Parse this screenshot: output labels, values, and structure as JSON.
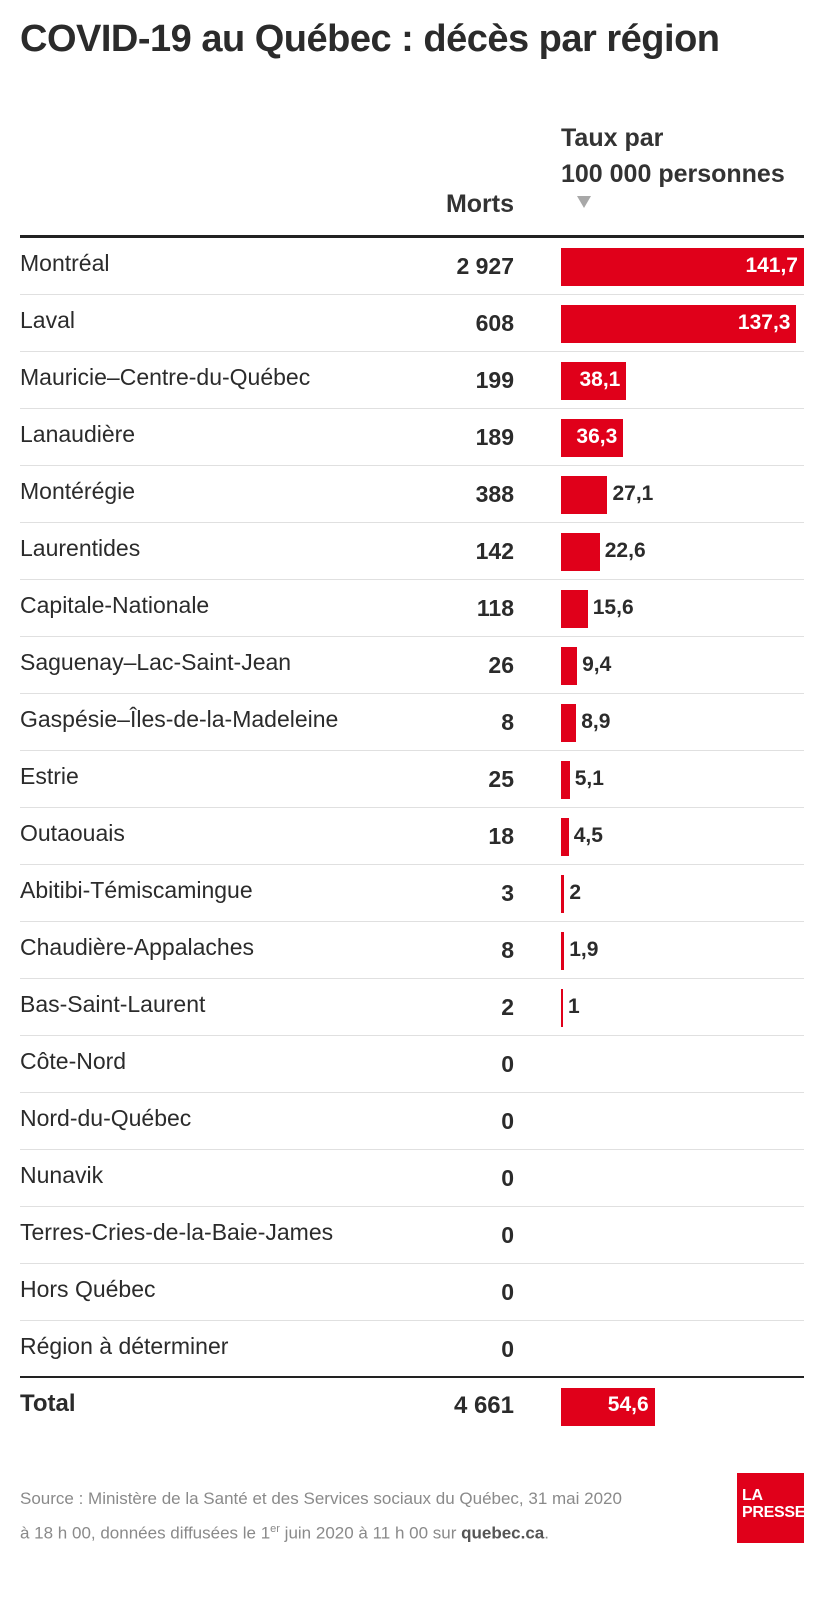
{
  "title": "COVID-19 au Québec : décès par région",
  "headers": {
    "deaths": "Morts",
    "rate_line1": "Taux par",
    "rate_line2": "100 000 personnes"
  },
  "colors": {
    "bar": "#e0001a",
    "text": "#2b2b2b",
    "rule": "#222222"
  },
  "chart_data": {
    "type": "bar",
    "orientation": "horizontal",
    "title": "COVID-19 au Québec : décès par région",
    "categories": [
      "Montréal",
      "Laval",
      "Mauricie–Centre-du-Québec",
      "Lanaudière",
      "Montérégie",
      "Laurentides",
      "Capitale-Nationale",
      "Saguenay–Lac-Saint-Jean",
      "Gaspésie–Îles-de-la-Madeleine",
      "Estrie",
      "Outaouais",
      "Abitibi-Témiscamingue",
      "Chaudière-Appalaches",
      "Bas-Saint-Laurent",
      "Côte-Nord",
      "Nord-du-Québec",
      "Nunavik",
      "Terres-Cries-de-la-Baie-James",
      "Hors Québec",
      "Région à déterminer"
    ],
    "deaths": [
      "2 927",
      "608",
      "199",
      "189",
      "388",
      "142",
      "118",
      "26",
      "8",
      "25",
      "18",
      "3",
      "8",
      "2",
      "0",
      "0",
      "0",
      "0",
      "0",
      "0"
    ],
    "rates": [
      141.7,
      137.3,
      38.1,
      36.3,
      27.1,
      22.6,
      15.6,
      9.4,
      8.9,
      5.1,
      4.5,
      2,
      1.9,
      1,
      null,
      null,
      null,
      null,
      null,
      null
    ],
    "rate_labels": [
      "141,7",
      "137,3",
      "38,1",
      "36,3",
      "27,1",
      "22,6",
      "15,6",
      "9,4",
      "8,9",
      "5,1",
      "4,5",
      "2",
      "1,9",
      "1",
      "",
      "",
      "",
      "",
      "",
      ""
    ],
    "xlim": [
      0,
      141.7
    ],
    "total": {
      "label": "Total",
      "deaths": "4 661",
      "rate": 54.6,
      "rate_label": "54,6"
    },
    "sort": "descending by rate"
  },
  "source": {
    "text1": "Source : Ministère de la Santé et des Services sociaux du Québec, 31 mai 2020",
    "text2a": "à 18 h 00, données diffusées le 1",
    "text2sup": "er",
    "text2b": " juin 2020 à 11 h 00 sur ",
    "link": "quebec.ca",
    "end": "."
  },
  "logo": {
    "line1": "LA",
    "line2": "PRESSE"
  }
}
